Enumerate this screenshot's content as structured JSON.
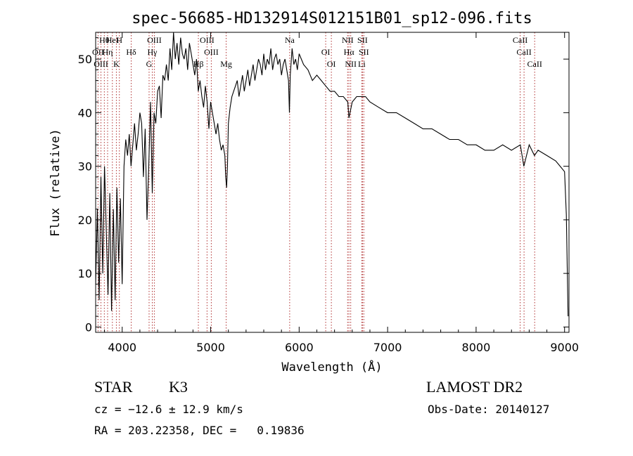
{
  "chart_data": {
    "type": "line",
    "title": "spec-56685-HD132914S012151B01_sp12-096.fits",
    "xlabel": "Wavelength (Å)",
    "ylabel": "Flux (relative)",
    "xlim": [
      3700,
      9050
    ],
    "ylim": [
      -1,
      55
    ],
    "x_ticks": [
      4000,
      5000,
      6000,
      7000,
      8000,
      9000
    ],
    "y_ticks": [
      0,
      10,
      20,
      30,
      40,
      50
    ],
    "grid": false,
    "series": [
      {
        "x": [
          3700,
          3720,
          3740,
          3760,
          3780,
          3800,
          3820,
          3840,
          3860,
          3880,
          3900,
          3920,
          3940,
          3960,
          3980,
          4000,
          4020,
          4040,
          4060,
          4080,
          4100,
          4120,
          4140,
          4160,
          4180,
          4200,
          4220,
          4240,
          4260,
          4280,
          4300,
          4320,
          4340,
          4360,
          4380,
          4400,
          4420,
          4440,
          4460,
          4480,
          4500,
          4520,
          4540,
          4560,
          4580,
          4600,
          4620,
          4640,
          4660,
          4680,
          4700,
          4720,
          4740,
          4760,
          4780,
          4800,
          4820,
          4840,
          4860,
          4880,
          4900,
          4920,
          4940,
          4960,
          4980,
          5000,
          5020,
          5040,
          5060,
          5080,
          5100,
          5120,
          5140,
          5160,
          5170,
          5180,
          5190,
          5200,
          5220,
          5240,
          5260,
          5280,
          5300,
          5320,
          5340,
          5360,
          5380,
          5400,
          5420,
          5440,
          5460,
          5480,
          5500,
          5520,
          5540,
          5560,
          5580,
          5600,
          5620,
          5640,
          5660,
          5680,
          5700,
          5720,
          5740,
          5760,
          5780,
          5800,
          5820,
          5840,
          5860,
          5880,
          5890,
          5900,
          5920,
          5940,
          5960,
          5980,
          6000,
          6050,
          6100,
          6150,
          6200,
          6250,
          6300,
          6350,
          6400,
          6450,
          6500,
          6550,
          6563,
          6600,
          6650,
          6700,
          6750,
          6800,
          6900,
          7000,
          7100,
          7200,
          7300,
          7400,
          7500,
          7600,
          7700,
          7800,
          7900,
          8000,
          8100,
          8200,
          8300,
          8400,
          8500,
          8540,
          8600,
          8660,
          8700,
          8800,
          8900,
          8950,
          9000,
          9020,
          9040
        ],
        "y": [
          8,
          22,
          5,
          28,
          10,
          30,
          18,
          6,
          25,
          3,
          22,
          5,
          26,
          12,
          24,
          8,
          30,
          35,
          32,
          36,
          30,
          34,
          38,
          33,
          36,
          40,
          38,
          28,
          37,
          20,
          30,
          42,
          25,
          40,
          38,
          44,
          45,
          39,
          47,
          46,
          49,
          46,
          52,
          48,
          55,
          50,
          53,
          49,
          54,
          51,
          50,
          52,
          48,
          53,
          51,
          49,
          47,
          50,
          44,
          46,
          43,
          41,
          45,
          42,
          37,
          42,
          40,
          38,
          36,
          38,
          35,
          33,
          34,
          32,
          28,
          26,
          30,
          38,
          41,
          43,
          44,
          45,
          46,
          43,
          45,
          47,
          44,
          46,
          48,
          45,
          47,
          49,
          46,
          48,
          50,
          49,
          47,
          51,
          48,
          50,
          49,
          52,
          48,
          50,
          51,
          49,
          50,
          47,
          49,
          50,
          48,
          46,
          40,
          47,
          52,
          49,
          50,
          48,
          51,
          49,
          48,
          46,
          47,
          46,
          45,
          44,
          44,
          43,
          43,
          42,
          39,
          42,
          43,
          43,
          43,
          42,
          41,
          40,
          40,
          39,
          38,
          37,
          37,
          36,
          35,
          35,
          34,
          34,
          33,
          33,
          34,
          33,
          34,
          30,
          34,
          32,
          33,
          32,
          31,
          30,
          29,
          21,
          2
        ]
      }
    ],
    "line_markers": [
      {
        "label": "Hθ",
        "x": 3798
      },
      {
        "label": "OII",
        "x": 3727
      },
      {
        "label": "OIII",
        "x": 3760
      },
      {
        "label": "HeI",
        "x": 3889
      },
      {
        "label": "Hη",
        "x": 3835
      },
      {
        "label": "K",
        "x": 3934
      },
      {
        "label": "H",
        "x": 3968
      },
      {
        "label": "Hδ",
        "x": 4102
      },
      {
        "label": "G",
        "x": 4304
      },
      {
        "label": "OIII",
        "x": 4363
      },
      {
        "label": "Hγ",
        "x": 4340
      },
      {
        "label": "Hβ",
        "x": 4861
      },
      {
        "label": "OIII",
        "x": 4959
      },
      {
        "label": "OIII",
        "x": 5007
      },
      {
        "label": "Mg",
        "x": 5175
      },
      {
        "label": "Na",
        "x": 5893
      },
      {
        "label": "OI",
        "x": 6300
      },
      {
        "label": "OI",
        "x": 6364
      },
      {
        "label": "NII",
        "x": 6548
      },
      {
        "label": "Hα",
        "x": 6563
      },
      {
        "label": "NII",
        "x": 6583
      },
      {
        "label": "SII",
        "x": 6716
      },
      {
        "label": "SII",
        "x": 6731
      },
      {
        "label": "Li",
        "x": 6708
      },
      {
        "label": "CaII",
        "x": 8498
      },
      {
        "label": "CaII",
        "x": 8542
      },
      {
        "label": "CaII",
        "x": 8662
      }
    ]
  },
  "info": {
    "object_class": "STAR",
    "subclass": "K3",
    "survey": "LAMOST DR2",
    "cz_line": "cz = −12.6 ± 12.9 km/s",
    "obs_date_line": "Obs-Date: 20140127",
    "coord_line": "RA = 203.22358, DEC =   0.19836"
  },
  "colors": {
    "marker_line": "#b03030",
    "spectrum": "#000000"
  }
}
